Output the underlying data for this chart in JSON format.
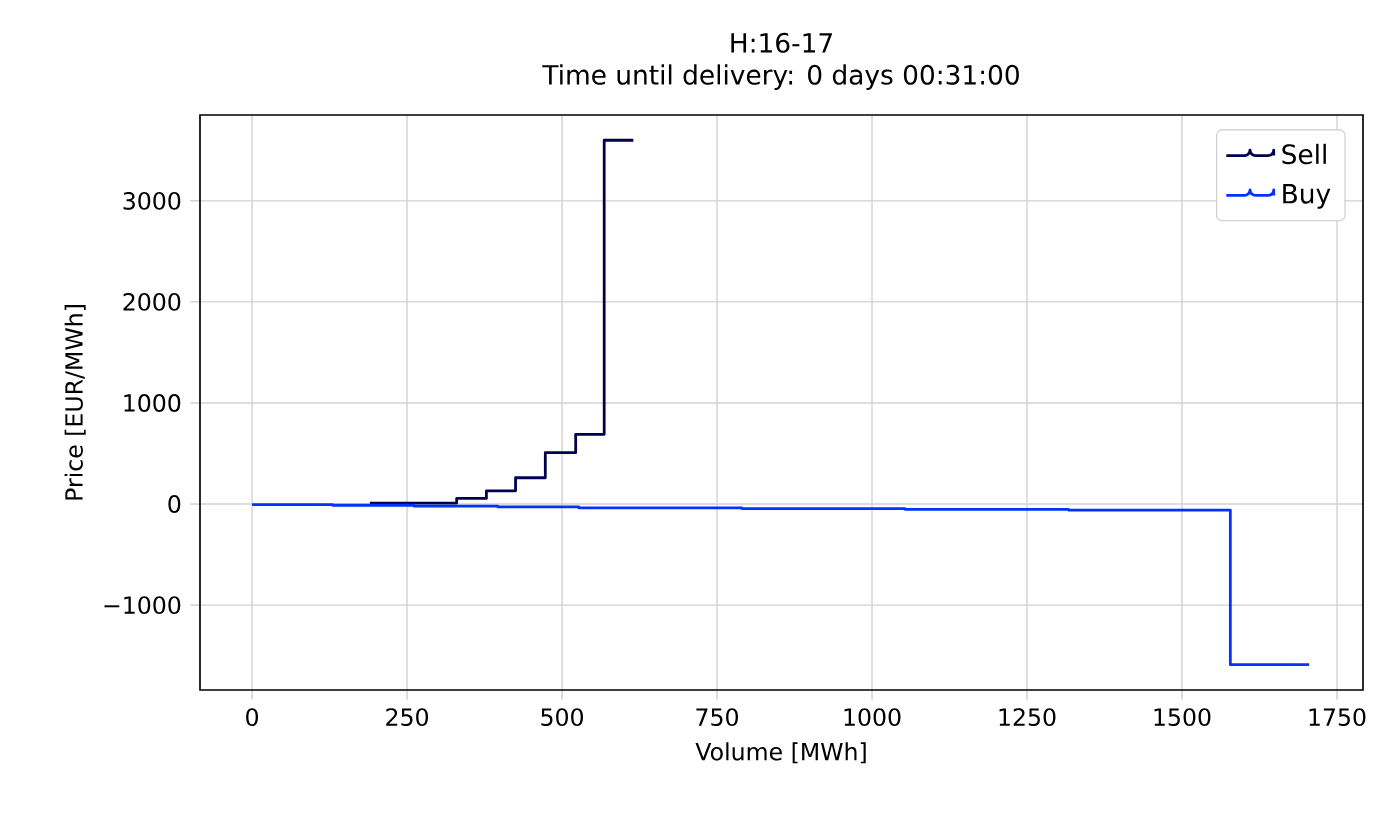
{
  "chart_data": {
    "type": "step",
    "title": "H:16-17",
    "subtitle": "Time until delivery: 0 days 00:31:00",
    "xlabel": "Volume [MWh]",
    "ylabel": "Price [EUR/MWh]",
    "series": [
      {
        "name": "Sell",
        "color": "#000050",
        "x": [
          190,
          330,
          378,
          425,
          473,
          522,
          568,
          615
        ],
        "values": [
          10,
          56,
          131,
          260,
          508,
          690,
          3600,
          3600
        ]
      },
      {
        "name": "Buy",
        "color": "#0033ff",
        "x": [
          0,
          130,
          261,
          396,
          527,
          790,
          1053,
          1317,
          1578,
          1705
        ],
        "values": [
          -5,
          -12,
          -20,
          -28,
          -38,
          -45,
          -52,
          -60,
          -1590,
          -1590
        ]
      }
    ],
    "xlim": [
      -84,
      1792
    ],
    "ylim": [
      -1840,
      3850
    ],
    "xticks": [
      0,
      250,
      500,
      750,
      1000,
      1250,
      1500,
      1750
    ],
    "yticks": [
      {
        "value": -1000,
        "label": "−1000"
      },
      0,
      1000,
      2000,
      3000
    ],
    "grid": true,
    "legend": "top right"
  }
}
